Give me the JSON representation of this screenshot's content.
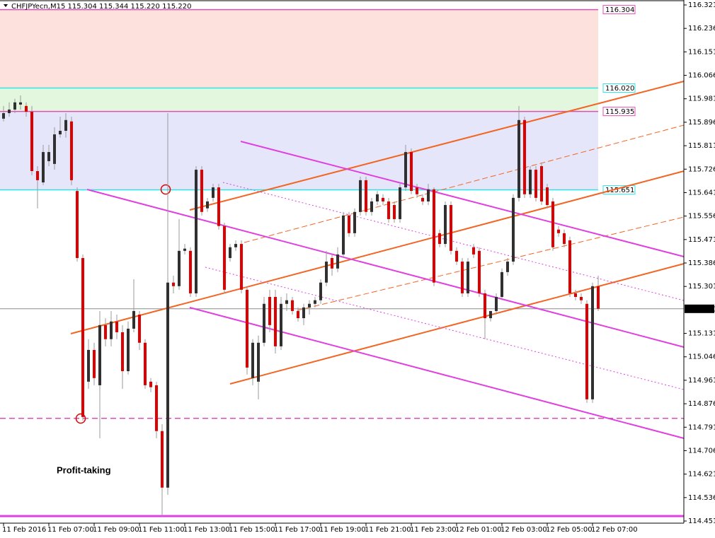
{
  "chart_data": {
    "type": "candlestick",
    "title": "CHFJPYecn,M15  115.304 115.344 115.220 115.220",
    "annotation": "Profit-taking",
    "ylim": [
      114.451,
      116.321
    ],
    "yticks": [
      116.321,
      116.236,
      116.151,
      116.066,
      115.981,
      115.896,
      115.811,
      115.726,
      115.641,
      115.556,
      115.471,
      115.386,
      115.301,
      115.131,
      115.046,
      114.961,
      114.876,
      114.791,
      114.706,
      114.621,
      114.536,
      114.451
    ],
    "xticks": [
      {
        "value": 0,
        "label": "11 Feb 2016"
      },
      {
        "value": 8,
        "label": "11 Feb 07:00"
      },
      {
        "value": 16,
        "label": "11 Feb 09:00"
      },
      {
        "value": 24,
        "label": "11 Feb 11:00"
      },
      {
        "value": 32,
        "label": "11 Feb 13:00"
      },
      {
        "value": 40,
        "label": "11 Feb 15:00"
      },
      {
        "value": 48,
        "label": "11 Feb 17:00"
      },
      {
        "value": 56,
        "label": "11 Feb 19:00"
      },
      {
        "value": 64,
        "label": "11 Feb 21:00"
      },
      {
        "value": 72,
        "label": "11 Feb 23:00"
      },
      {
        "value": 80,
        "label": "12 Feb 01:00"
      },
      {
        "value": 88,
        "label": "12 Feb 03:00"
      },
      {
        "value": 96,
        "label": "12 Feb 05:00"
      },
      {
        "value": 104,
        "label": "12 Feb 07:00"
      }
    ],
    "current_price": {
      "value": 115.22,
      "label": "115.220"
    },
    "up_color": "#303030",
    "down_color": "#e00000",
    "wick_color": "#9a9a9a",
    "zones": [
      {
        "from": 116.304,
        "to": 116.02,
        "color": "#fde1dd"
      },
      {
        "from": 116.02,
        "to": 115.935,
        "color": "#e3f7df"
      },
      {
        "from": 115.935,
        "to": 115.651,
        "color": "#e6e6fa"
      }
    ],
    "levels": [
      {
        "value": 116.304,
        "color": "#e24cb5",
        "labeled": true
      },
      {
        "value": 116.02,
        "label": "116.020",
        "color": "#2ee6e6",
        "labeled": true
      },
      {
        "value": 115.935,
        "color": "#e24cb5",
        "labeled": true
      },
      {
        "value": 115.651,
        "color": "#2ee6e6",
        "labeled": true
      },
      {
        "value": 114.823,
        "color": "#e24cb5",
        "dashed": true
      },
      {
        "value": 114.469,
        "color": "#e040e0",
        "thick": true
      }
    ],
    "open": [
      115.909,
      115.929,
      115.942,
      115.96,
      115.955,
      115.934,
      115.719,
      115.678,
      115.755,
      115.745,
      115.852,
      115.865,
      115.899,
      115.647,
      115.404,
      114.956,
      115.071,
      114.943,
      115.161,
      115.11,
      115.174,
      115.135,
      114.994,
      115.148,
      115.199,
      115.097,
      114.956,
      114.943,
      114.777,
      114.572,
      115.315,
      115.302,
      115.43,
      115.43,
      115.276,
      115.724,
      115.584,
      115.622,
      115.66,
      115.52,
      115.404,
      115.443,
      115.455,
      115.289,
      114.969,
      114.956,
      115.097,
      115.263,
      115.263,
      115.084,
      115.238,
      115.251,
      115.212,
      115.186,
      115.225,
      115.238,
      115.251,
      115.315,
      115.404,
      115.366,
      115.417,
      115.558,
      115.494,
      115.571,
      115.686,
      115.571,
      115.609,
      115.622,
      115.609,
      115.596,
      115.545,
      115.66,
      115.788,
      115.66,
      115.622,
      115.609,
      115.653,
      115.494,
      115.455,
      115.596,
      115.43,
      115.391,
      115.276,
      115.443,
      115.43,
      115.276,
      115.186,
      115.212,
      115.263,
      115.353,
      115.391,
      115.622,
      115.904,
      115.635,
      115.724,
      115.737,
      115.66,
      115.609,
      115.507,
      115.494,
      115.468,
      115.276,
      115.263,
      115.238,
      114.892,
      115.302
    ],
    "high": [
      115.955,
      115.968,
      115.981,
      115.993,
      115.968,
      115.955,
      115.737,
      115.814,
      115.814,
      115.878,
      115.916,
      115.929,
      115.916,
      115.66,
      115.417,
      115.11,
      115.097,
      115.212,
      115.186,
      115.212,
      115.199,
      115.161,
      115.174,
      115.327,
      115.212,
      115.11,
      114.969,
      114.956,
      114.802,
      115.929,
      115.34,
      115.545,
      115.455,
      115.443,
      115.737,
      115.737,
      115.622,
      115.673,
      115.673,
      115.532,
      115.455,
      115.468,
      115.468,
      115.302,
      115.11,
      115.123,
      115.263,
      115.289,
      115.289,
      115.263,
      115.276,
      115.263,
      115.225,
      115.238,
      115.251,
      115.263,
      115.327,
      115.43,
      115.417,
      115.443,
      115.571,
      115.571,
      115.584,
      115.699,
      115.699,
      115.622,
      115.647,
      115.635,
      115.622,
      115.609,
      115.673,
      115.814,
      115.801,
      115.673,
      115.635,
      115.673,
      115.66,
      115.507,
      115.609,
      115.609,
      115.443,
      115.404,
      115.404,
      115.455,
      115.443,
      115.289,
      115.212,
      115.276,
      115.366,
      115.404,
      115.635,
      115.955,
      115.916,
      115.737,
      115.737,
      115.75,
      115.673,
      115.622,
      115.52,
      115.507,
      115.481,
      115.289,
      115.276,
      115.251,
      115.315,
      115.34
    ],
    "low": [
      115.899,
      115.916,
      115.929,
      115.942,
      115.916,
      115.704,
      115.584,
      115.668,
      115.737,
      115.724,
      115.84,
      115.84,
      115.668,
      115.391,
      114.815,
      114.93,
      114.943,
      114.751,
      115.084,
      115.084,
      115.11,
      114.93,
      114.982,
      115.135,
      115.071,
      114.93,
      114.918,
      114.751,
      114.469,
      114.546,
      115.276,
      115.289,
      115.417,
      115.263,
      115.263,
      115.558,
      115.571,
      115.609,
      115.507,
      115.276,
      115.391,
      115.43,
      115.276,
      114.982,
      114.943,
      114.892,
      115.084,
      115.135,
      115.058,
      115.071,
      115.212,
      115.199,
      115.174,
      115.161,
      115.199,
      115.225,
      115.238,
      115.302,
      115.34,
      115.353,
      115.404,
      115.481,
      115.481,
      115.558,
      115.558,
      115.558,
      115.596,
      115.596,
      115.532,
      115.532,
      115.532,
      115.647,
      115.635,
      115.622,
      115.596,
      115.596,
      115.302,
      115.443,
      115.443,
      115.417,
      115.379,
      115.263,
      115.263,
      115.404,
      115.263,
      115.11,
      115.174,
      115.199,
      115.251,
      115.34,
      115.379,
      115.609,
      115.622,
      115.622,
      115.609,
      115.596,
      115.584,
      115.43,
      115.481,
      115.443,
      115.263,
      115.251,
      115.238,
      114.879,
      114.879,
      115.212
    ],
    "close": [
      115.929,
      115.942,
      115.968,
      115.968,
      115.934,
      115.719,
      115.686,
      115.788,
      115.788,
      115.852,
      115.865,
      115.904,
      115.686,
      115.404,
      114.828,
      115.071,
      114.969,
      115.161,
      115.11,
      115.174,
      115.135,
      114.994,
      115.148,
      115.212,
      115.097,
      114.943,
      114.936,
      114.777,
      114.572,
      115.315,
      115.302,
      115.43,
      115.438,
      115.276,
      115.724,
      115.571,
      115.609,
      115.66,
      115.52,
      115.289,
      115.443,
      115.455,
      115.289,
      115.007,
      115.097,
      115.097,
      115.238,
      115.161,
      115.084,
      115.238,
      115.251,
      115.212,
      115.186,
      115.225,
      115.238,
      115.251,
      115.315,
      115.391,
      115.366,
      115.417,
      115.558,
      115.494,
      115.571,
      115.686,
      115.571,
      115.609,
      115.635,
      115.609,
      115.545,
      115.545,
      115.66,
      115.788,
      115.647,
      115.635,
      115.609,
      115.653,
      115.315,
      115.455,
      115.596,
      115.43,
      115.391,
      115.276,
      115.391,
      115.417,
      115.276,
      115.186,
      115.212,
      115.263,
      115.353,
      115.391,
      115.622,
      115.904,
      115.635,
      115.724,
      115.622,
      115.609,
      115.596,
      115.443,
      115.494,
      115.455,
      115.276,
      115.263,
      115.251,
      114.892,
      115.302,
      115.22
    ]
  }
}
